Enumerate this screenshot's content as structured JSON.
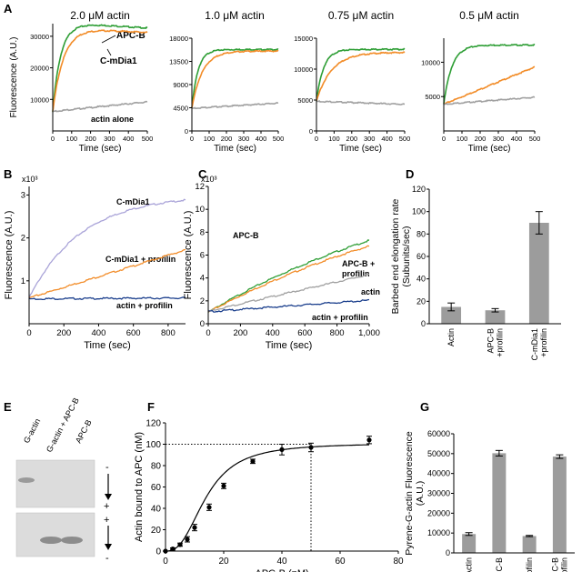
{
  "chart_data": [
    {
      "panel": "A",
      "type": "line",
      "title": "2.0 μM actin",
      "xlabel": "Time (sec)",
      "ylabel": "Fluorescence (A.U.)",
      "xlim": [
        0,
        500
      ],
      "ylim": [
        0,
        34000
      ],
      "xticks": [
        0,
        100,
        200,
        300,
        400,
        500
      ],
      "yticks": [
        10000,
        20000,
        30000
      ],
      "ytick_labels": [
        "10000",
        "20000",
        "30000"
      ],
      "series": [
        {
          "name": "APC-B",
          "color": "#2e9e35",
          "base": 6000,
          "peak": 32200,
          "tau": 40,
          "overshoot": 0.06,
          "decay": 180
        },
        {
          "name": "C-mDia1",
          "color": "#f28c28",
          "base": 6000,
          "peak": 31000,
          "tau": 55,
          "overshoot": 0.05,
          "decay": 160
        },
        {
          "name": "actin alone",
          "color": "#a0a0a0",
          "base": 6200,
          "peak": 9200,
          "tau": 500,
          "linear": true
        }
      ]
    },
    {
      "panel": "A2",
      "type": "line",
      "title": "1.0 μM actin",
      "xlabel": "Time (sec)",
      "xlim": [
        0,
        500
      ],
      "ylim": [
        0,
        18000
      ],
      "xticks": [
        0,
        100,
        200,
        300,
        400,
        500
      ],
      "yticks": [
        0,
        4500,
        9000,
        13500,
        18000
      ],
      "ytick_labels": [
        "0",
        "4500",
        "9000",
        "13500",
        "18000"
      ],
      "series": [
        {
          "name": "APC-B",
          "color": "#2e9e35",
          "base": 4400,
          "peak": 15800,
          "tau": 35
        },
        {
          "name": "C-mDia1",
          "color": "#f28c28",
          "base": 4400,
          "peak": 15500,
          "tau": 60
        },
        {
          "name": "actin alone",
          "color": "#a0a0a0",
          "base": 4400,
          "peak": 5400,
          "tau": 500,
          "linear": true
        }
      ]
    },
    {
      "panel": "A3",
      "type": "line",
      "title": "0.75 μM actin",
      "xlabel": "Time (sec)",
      "xlim": [
        0,
        500
      ],
      "ylim": [
        0,
        15000
      ],
      "xticks": [
        0,
        100,
        200,
        300,
        400,
        500
      ],
      "yticks": [
        0,
        5000,
        10000,
        15000
      ],
      "ytick_labels": [
        "0",
        "5000",
        "10000",
        "15000"
      ],
      "series": [
        {
          "name": "APC-B",
          "color": "#2e9e35",
          "base": 4800,
          "peak": 13200,
          "tau": 40
        },
        {
          "name": "C-mDia1",
          "color": "#f28c28",
          "base": 4800,
          "peak": 12700,
          "tau": 85
        },
        {
          "name": "actin alone",
          "color": "#a0a0a0",
          "base": 4800,
          "peak": 4300,
          "tau": 500,
          "linear": true
        }
      ]
    },
    {
      "panel": "A4",
      "type": "line",
      "title": "0.5 μM actin",
      "xlabel": "Time (sec)",
      "xlim": [
        0,
        500
      ],
      "ylim": [
        0,
        13500
      ],
      "xticks": [
        0,
        100,
        200,
        300,
        400,
        500
      ],
      "yticks": [
        5000,
        10000
      ],
      "ytick_labels": [
        "5000",
        "10000"
      ],
      "series": [
        {
          "name": "APC-B",
          "color": "#2e9e35",
          "base": 3900,
          "peak": 12500,
          "tau": 45
        },
        {
          "name": "C-mDia1",
          "color": "#f28c28",
          "base": 3900,
          "peak": 9300,
          "tau": 500,
          "linear": true
        },
        {
          "name": "actin alone",
          "color": "#a0a0a0",
          "base": 3900,
          "peak": 4900,
          "tau": 500,
          "linear": true
        }
      ]
    },
    {
      "panel": "B",
      "type": "line",
      "xlabel": "Time (sec)",
      "ylabel": "Fluorescence (A.U.)",
      "y_multiplier": "x10³",
      "xlim": [
        0,
        900
      ],
      "ylim": [
        0,
        3.2
      ],
      "xticks": [
        0,
        200,
        400,
        600,
        800
      ],
      "yticks": [
        1,
        2,
        3
      ],
      "series": [
        {
          "name": "C-mDia1",
          "color": "#a9a3d8",
          "base": 0.6,
          "peak": 3.0,
          "tau": 300
        },
        {
          "name": "C-mDia1 + profilin",
          "color": "#f28c28",
          "base": 0.6,
          "peak": 1.72,
          "tau": 900,
          "linear": true
        },
        {
          "name": "actin + profilin",
          "color": "#1a3e8c",
          "base": 0.58,
          "peak": 0.6,
          "tau": 900,
          "linear": true
        }
      ]
    },
    {
      "panel": "C",
      "type": "line",
      "xlabel": "Time (sec)",
      "ylabel": "Fluorescence (A.U.)",
      "y_multiplier": "x10³",
      "xlim": [
        0,
        1000
      ],
      "ylim": [
        0,
        12
      ],
      "xticks": [
        0,
        200,
        400,
        600,
        800,
        1000
      ],
      "xtick_labels": [
        "0",
        "200",
        "400",
        "600",
        "800",
        "1,000"
      ],
      "yticks": [
        0,
        2,
        4,
        6,
        8,
        10,
        12
      ],
      "series": [
        {
          "name": "APC-B",
          "color": "#2e9e35",
          "base": 1.0,
          "peak": 14.5,
          "tau": 1600
        },
        {
          "name": "APC-B + profilin",
          "color": "#f28c28",
          "base": 1.0,
          "peak": 14.0,
          "tau": 1700
        },
        {
          "name": "actin",
          "color": "#a0a0a0",
          "base": 1.1,
          "peak": 4.3,
          "tau": 1000,
          "linear": true
        },
        {
          "name": "actin + profilin",
          "color": "#1a3e8c",
          "base": 1.05,
          "peak": 2.05,
          "tau": 1000,
          "linear": true
        }
      ]
    },
    {
      "panel": "D",
      "type": "bar",
      "ylabel": "Barbed end elongation rate (Subunits/sec)",
      "categories": [
        "Actin",
        "APC-B +profilin",
        "C-mDia1 +profilin"
      ],
      "values": [
        15,
        12,
        90
      ],
      "errors": [
        3.5,
        1.5,
        10
      ],
      "ylim": [
        0,
        120
      ],
      "yticks": [
        0,
        20,
        40,
        60,
        80,
        100,
        120
      ]
    },
    {
      "panel": "F",
      "type": "scatter",
      "xlabel": "APC-B (nM)",
      "ylabel": "Actin bound to APC (nM)",
      "xlim": [
        0,
        80
      ],
      "ylim": [
        0,
        120
      ],
      "xticks": [
        0,
        20,
        40,
        60,
        80
      ],
      "yticks": [
        0,
        20,
        40,
        60,
        80,
        100,
        120
      ],
      "x": [
        0,
        2.5,
        5,
        7.5,
        10,
        15,
        20,
        30,
        40,
        50,
        70
      ],
      "y": [
        0,
        2,
        6,
        11,
        22,
        41,
        61,
        84,
        95,
        97,
        104
      ],
      "errors": [
        0,
        1,
        1.5,
        2.5,
        3,
        3,
        2.5,
        2,
        5,
        4,
        3.5
      ],
      "fit_Kd_half": 14,
      "fit_Bmax": 101,
      "fit_hill": 2.6,
      "reference_lines": {
        "y": 100,
        "x": 50
      }
    },
    {
      "panel": "G",
      "type": "bar",
      "ylabel": "Pyrene-G-actin Fluorescence (A.U.)",
      "categories": [
        "Actin",
        "APC-B",
        "profilin",
        "APC-B +profilin"
      ],
      "values": [
        9500,
        50200,
        8500,
        48500
      ],
      "errors": [
        700,
        1400,
        300,
        900
      ],
      "ylim": [
        0,
        60000
      ],
      "yticks": [
        0,
        10000,
        20000,
        30000,
        40000,
        50000,
        60000
      ]
    }
  ],
  "panel_labels": {
    "A": "A",
    "B": "B",
    "C": "C",
    "D": "D",
    "E": "E",
    "F": "F",
    "G": "G"
  },
  "annotations": {
    "a_apcb": "APC-B",
    "a_cmdia1": "C-mDia1",
    "a_actin_alone": "actin alone",
    "b_cmdia1": "C-mDia1",
    "b_cmdia1_prof": "C-mDia1 + profilin",
    "b_actin_prof": "actin + profilin",
    "c_apcb": "APC-B",
    "c_apcb_prof_1": "APC-B +",
    "c_apcb_prof_2": "profilin",
    "c_actin": "actin",
    "c_actin_prof": "actin + profilin"
  },
  "gel": {
    "lanes": [
      "G-actin",
      "G-actin + APC-B",
      "APC-B"
    ],
    "polarity_top": [
      "-",
      "+"
    ],
    "polarity_bottom": [
      "+",
      "-"
    ]
  }
}
